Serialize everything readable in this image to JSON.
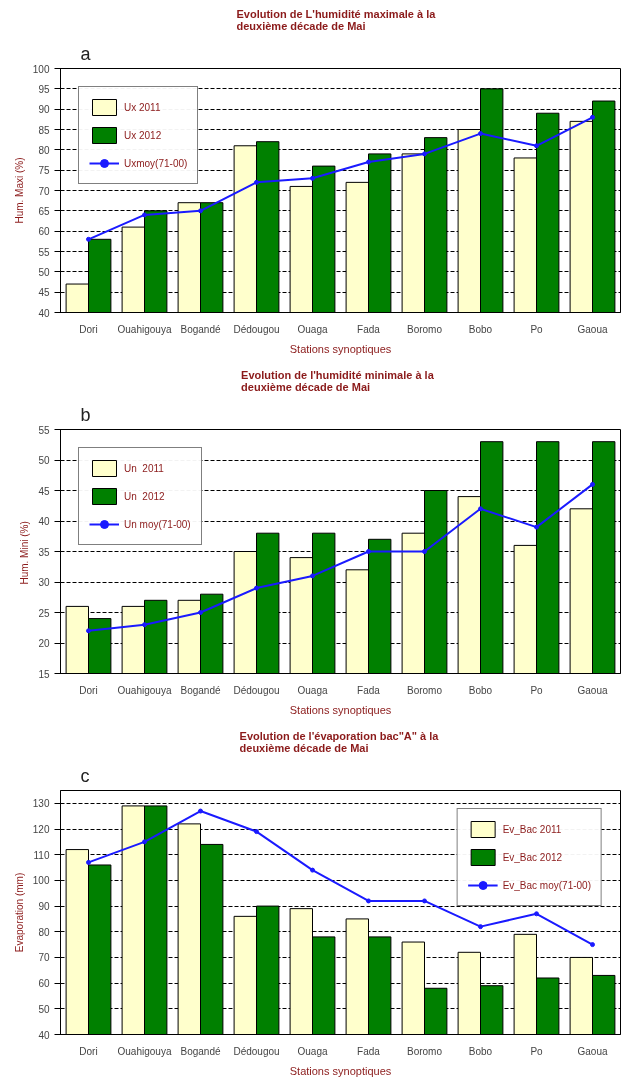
{
  "chart_data": [
    {
      "type": "bar",
      "title": "Evolution  de L'humidité  maximale  à la\ndeuxième  décade de Mai",
      "xlabel": "Stations synoptiques",
      "ylabel": "Hum. Maxi (%)",
      "annotations": [
        "a"
      ],
      "categories": [
        "Dori",
        "Ouahigouya",
        "Bogandé",
        "Dédougou",
        "Ouaga",
        "Fada",
        "Boromo",
        "Bobo",
        "Po",
        "Gaoua"
      ],
      "series": [
        {
          "name": "Ux 2011",
          "color": "#ffffcc",
          "values": [
            47,
            61,
            67,
            81,
            71,
            72,
            79,
            85,
            78,
            87
          ]
        },
        {
          "name": "Ux 2012",
          "color": "#008000",
          "values": [
            58,
            65,
            67,
            82,
            76,
            79,
            83,
            95,
            89,
            92
          ]
        },
        {
          "name": "Uxmoy(71-00)",
          "type": "line",
          "color": "#1a1aff",
          "marker": "circle",
          "values": [
            58,
            64,
            65,
            72,
            73,
            77,
            79,
            84,
            81,
            88
          ]
        }
      ],
      "ylim": [
        40,
        100
      ],
      "yticks": [
        40,
        45,
        50,
        55,
        60,
        65,
        70,
        75,
        80,
        85,
        90,
        95,
        100
      ],
      "grid": "y",
      "legend": "top left"
    },
    {
      "type": "bar",
      "title": "Evolution  de l'humidité  minimale à la\ndeuxième décade de Mai",
      "xlabel": "Stations synoptiques",
      "ylabel": "Hum. Mini  (%)",
      "annotations": [
        "b"
      ],
      "categories": [
        "Dori",
        "Ouahigouya",
        "Bogandé",
        "Dédougou",
        "Ouaga",
        "Fada",
        "Boromo",
        "Bobo",
        "Po",
        "Gaoua"
      ],
      "series": [
        {
          "name": "Un  2011",
          "color": "#ffffcc",
          "values": [
            26,
            26,
            27,
            35,
            34,
            32,
            38,
            44,
            36,
            42
          ]
        },
        {
          "name": "Un  2012",
          "color": "#008000",
          "values": [
            24,
            27,
            28,
            38,
            38,
            37,
            45,
            53,
            53,
            53
          ]
        },
        {
          "name": "Un moy(71-00)",
          "type": "line",
          "color": "#1a1aff",
          "marker": "circle",
          "values": [
            22,
            23,
            25,
            29,
            31,
            35,
            35,
            42,
            39,
            46
          ]
        }
      ],
      "ylim": [
        15,
        55
      ],
      "yticks": [
        15,
        20,
        25,
        30,
        35,
        40,
        45,
        50,
        55
      ],
      "grid": "y",
      "legend": "top left"
    },
    {
      "type": "bar",
      "title": "Evolution  de l'évaporation bac\"A\" à la\ndeuxième  décade de Mai",
      "xlabel": "Stations synoptiques",
      "ylabel": "Evaporation (mm)",
      "annotations": [
        "c"
      ],
      "categories": [
        "Dori",
        "Ouahigouya",
        "Bogandé",
        "Dédougou",
        "Ouaga",
        "Fada",
        "Boromo",
        "Bobo",
        "Po",
        "Gaoua"
      ],
      "series": [
        {
          "name": "Ev_Bac 2011",
          "color": "#ffffcc",
          "values": [
            112,
            129,
            122,
            86,
            89,
            85,
            76,
            72,
            79,
            70
          ]
        },
        {
          "name": "Ev_Bac 2012",
          "color": "#008000",
          "values": [
            106,
            129,
            114,
            90,
            78,
            78,
            58,
            59,
            62,
            63
          ]
        },
        {
          "name": "Ev_Bac moy(71-00)",
          "type": "line",
          "color": "#1a1aff",
          "marker": "circle",
          "values": [
            107,
            115,
            127,
            119,
            104,
            92,
            92,
            82,
            87,
            75
          ]
        }
      ],
      "ylim": [
        40,
        135
      ],
      "yticks": [
        40,
        50,
        60,
        70,
        80,
        90,
        100,
        110,
        120,
        130
      ],
      "grid": "y",
      "legend": "top right"
    }
  ]
}
